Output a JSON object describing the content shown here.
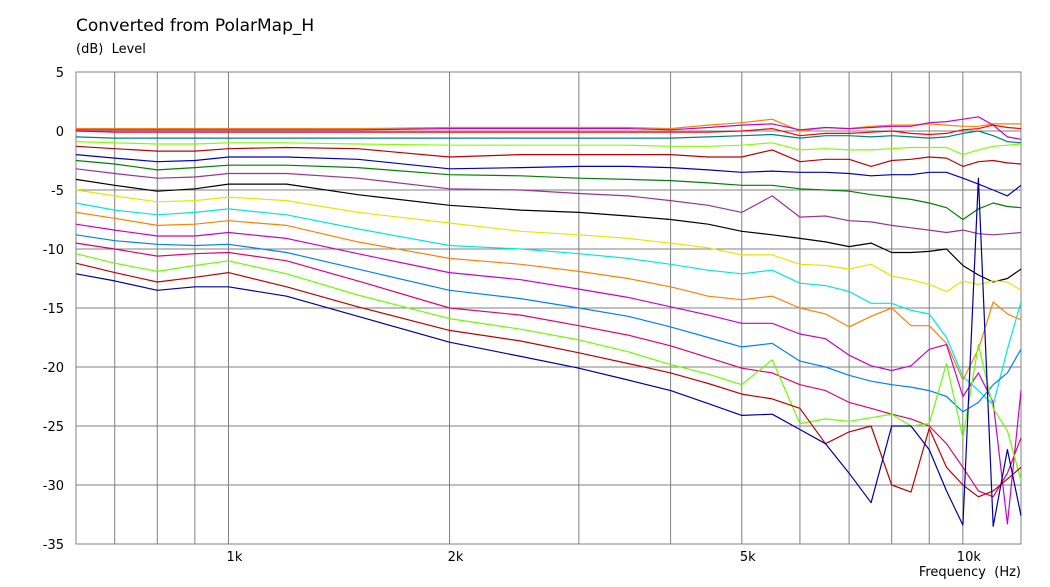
{
  "chart_data": {
    "type": "line",
    "title": "Converted from PolarMap_H",
    "ylabel": "(dB)  Level",
    "xlabel": "Frequency  (Hz)",
    "x_scale": "log",
    "xlim": [
      620,
      12000
    ],
    "ylim": [
      -35,
      5
    ],
    "grid": true,
    "y_ticks": [
      5,
      0,
      -5,
      -10,
      -15,
      -20,
      -25,
      -30,
      -35
    ],
    "x_tick_labels": [
      {
        "value": 1000,
        "label": "1k"
      },
      {
        "value": 2000,
        "label": "2k"
      },
      {
        "value": 5000,
        "label": "5k"
      },
      {
        "value": 10000,
        "label": "10k"
      }
    ],
    "x_grid": [
      700,
      800,
      900,
      1000,
      2000,
      3000,
      4000,
      5000,
      6000,
      7000,
      8000,
      9000,
      10000
    ],
    "x": [
      620,
      700,
      800,
      900,
      1000,
      1200,
      1500,
      2000,
      2500,
      3000,
      3500,
      4000,
      4500,
      5000,
      5500,
      6000,
      6500,
      7000,
      7500,
      8000,
      8500,
      9000,
      9500,
      10000,
      10500,
      11000,
      11500,
      12000
    ],
    "series": [
      {
        "color": "#ff8000",
        "values": [
          0.2,
          0.2,
          0.2,
          0.2,
          0.2,
          0.2,
          0.2,
          0.3,
          0.3,
          0.3,
          0.3,
          0.2,
          0.5,
          0.7,
          1.0,
          0.0,
          0.3,
          0.2,
          0.4,
          0.5,
          0.5,
          0.6,
          0.5,
          0.4,
          0.4,
          0.6,
          0.6,
          0.6
        ]
      },
      {
        "color": "#cc00cc",
        "values": [
          0.1,
          0.1,
          0.1,
          0.1,
          0.1,
          0.1,
          0.1,
          0.2,
          0.2,
          0.2,
          0.2,
          0.1,
          0.3,
          0.5,
          0.6,
          0.1,
          0.3,
          0.2,
          0.3,
          0.4,
          0.4,
          0.7,
          0.8,
          1.0,
          1.2,
          0.5,
          -0.5,
          -0.7
        ]
      },
      {
        "color": "#ff0000",
        "values": [
          0.0,
          -0.1,
          -0.1,
          -0.1,
          -0.1,
          -0.1,
          -0.1,
          -0.1,
          -0.1,
          -0.1,
          -0.1,
          -0.1,
          -0.1,
          0.0,
          0.2,
          -0.4,
          -0.2,
          -0.2,
          -0.1,
          0.0,
          -0.2,
          -0.3,
          -0.2,
          0.1,
          0.2,
          0.5,
          0.3,
          0.2
        ]
      },
      {
        "color": "#008080",
        "values": [
          -0.5,
          -0.6,
          -0.6,
          -0.6,
          -0.6,
          -0.6,
          -0.6,
          -0.6,
          -0.6,
          -0.6,
          -0.6,
          -0.6,
          -0.5,
          -0.4,
          -0.3,
          -0.6,
          -0.4,
          -0.4,
          -0.5,
          -0.4,
          -0.5,
          -0.6,
          -0.5,
          -0.2,
          0.0,
          -0.4,
          -0.9,
          -1.0
        ]
      },
      {
        "color": "#80ff00",
        "values": [
          -0.9,
          -1.0,
          -1.1,
          -1.1,
          -1.0,
          -1.0,
          -1.1,
          -1.2,
          -1.2,
          -1.2,
          -1.2,
          -1.3,
          -1.3,
          -1.2,
          -1.0,
          -1.6,
          -1.5,
          -1.6,
          -1.6,
          -1.5,
          -1.4,
          -1.4,
          -1.4,
          -2.0,
          -1.6,
          -1.3,
          -1.2,
          -1.1
        ]
      },
      {
        "color": "#c00000",
        "values": [
          -1.3,
          -1.5,
          -1.7,
          -1.7,
          -1.5,
          -1.4,
          -1.5,
          -2.2,
          -2.0,
          -2.0,
          -2.0,
          -2.0,
          -2.2,
          -2.2,
          -1.6,
          -2.6,
          -2.4,
          -2.4,
          -3.0,
          -2.5,
          -2.4,
          -2.2,
          -2.3,
          -3.0,
          -2.6,
          -2.5,
          -2.7,
          -2.8
        ]
      },
      {
        "color": "#0000c0",
        "values": [
          -2.0,
          -2.3,
          -2.6,
          -2.5,
          -2.2,
          -2.2,
          -2.4,
          -3.2,
          -3.1,
          -3.0,
          -3.0,
          -3.1,
          -3.3,
          -3.5,
          -3.4,
          -3.5,
          -3.5,
          -3.6,
          -3.8,
          -3.7,
          -3.7,
          -3.5,
          -3.5,
          -4.0,
          -4.5,
          -5.0,
          -5.5,
          -4.6
        ]
      },
      {
        "color": "#008000",
        "values": [
          -2.5,
          -2.8,
          -3.3,
          -3.1,
          -2.9,
          -2.9,
          -3.1,
          -3.7,
          -3.8,
          -4.0,
          -4.1,
          -4.2,
          -4.4,
          -4.6,
          -4.6,
          -4.9,
          -5.0,
          -5.1,
          -5.4,
          -5.6,
          -5.8,
          -6.1,
          -6.5,
          -7.5,
          -6.6,
          -6.1,
          -6.4,
          -6.5
        ]
      },
      {
        "color": "#993399",
        "values": [
          -3.2,
          -3.6,
          -4.0,
          -3.9,
          -3.6,
          -3.6,
          -4.0,
          -4.9,
          -5.0,
          -5.3,
          -5.5,
          -5.9,
          -6.3,
          -6.9,
          -5.5,
          -7.3,
          -7.2,
          -7.6,
          -7.7,
          -8.0,
          -8.2,
          -8.4,
          -8.6,
          -8.4,
          -8.7,
          -8.8,
          -8.7,
          -8.6
        ]
      },
      {
        "color": "#000000",
        "values": [
          -4.1,
          -4.6,
          -5.1,
          -4.9,
          -4.5,
          -4.5,
          -5.4,
          -6.3,
          -6.7,
          -6.9,
          -7.2,
          -7.5,
          -7.9,
          -8.5,
          -8.8,
          -9.1,
          -9.4,
          -9.8,
          -9.5,
          -10.3,
          -10.3,
          -10.2,
          -10.0,
          -11.4,
          -12.2,
          -12.8,
          -12.5,
          -11.7
        ]
      },
      {
        "color": "#e6e600",
        "values": [
          -5.0,
          -5.5,
          -6.0,
          -5.9,
          -5.6,
          -5.9,
          -6.9,
          -7.8,
          -8.5,
          -8.8,
          -9.1,
          -9.5,
          -9.9,
          -10.5,
          -10.5,
          -11.3,
          -11.4,
          -11.7,
          -11.3,
          -12.3,
          -12.6,
          -13.0,
          -13.6,
          -12.7,
          -13.0,
          -12.7,
          -12.8,
          -13.5
        ]
      },
      {
        "color": "#00e6e6",
        "values": [
          -6.1,
          -6.7,
          -7.1,
          -6.9,
          -6.6,
          -7.1,
          -8.3,
          -9.7,
          -10.0,
          -10.4,
          -10.8,
          -11.3,
          -11.8,
          -12.1,
          -11.8,
          -12.9,
          -13.1,
          -13.6,
          -14.6,
          -14.6,
          -15.2,
          -15.5,
          -17.5,
          -20.8,
          -22.0,
          -23.2,
          -18.5,
          -14.5
        ]
      },
      {
        "color": "#ff8000",
        "values": [
          -6.9,
          -7.4,
          -8.0,
          -7.9,
          -7.6,
          -8.0,
          -9.4,
          -10.8,
          -11.3,
          -11.9,
          -12.5,
          -13.2,
          -14.0,
          -14.3,
          -14.0,
          -15.0,
          -15.5,
          -16.6,
          -15.7,
          -15.0,
          -16.5,
          -16.5,
          -18.0,
          -21.1,
          -18.5,
          -14.5,
          -15.5,
          -16.0
        ]
      },
      {
        "color": "#cc00cc",
        "values": [
          -7.9,
          -8.4,
          -8.9,
          -8.9,
          -8.6,
          -9.1,
          -10.4,
          -12.0,
          -12.6,
          -13.4,
          -14.1,
          -14.9,
          -15.6,
          -16.3,
          -16.3,
          -17.2,
          -17.6,
          -19.0,
          -19.9,
          -20.3,
          -19.9,
          -18.5,
          -18.1,
          -22.5,
          -20.5,
          -23.0,
          -33.3,
          -22.0
        ]
      },
      {
        "color": "#0080ff",
        "values": [
          -8.8,
          -9.3,
          -9.6,
          -9.7,
          -9.6,
          -10.3,
          -11.7,
          -13.5,
          -14.2,
          -15.0,
          -15.7,
          -16.6,
          -17.5,
          -18.3,
          -18.0,
          -19.5,
          -20.0,
          -20.7,
          -21.2,
          -21.5,
          -21.7,
          -22.0,
          -22.5,
          -23.8,
          -23.0,
          -21.5,
          -20.5,
          -18.5
        ]
      },
      {
        "color": "#e6006e",
        "values": [
          -9.5,
          -10.0,
          -10.6,
          -10.4,
          -10.3,
          -11.0,
          -12.7,
          -15.0,
          -15.6,
          -16.5,
          -17.3,
          -18.2,
          -19.2,
          -20.1,
          -20.5,
          -21.5,
          -22.0,
          -23.0,
          -23.5,
          -24.0,
          -24.4,
          -25.0,
          -26.5,
          -28.5,
          -30.5,
          -31.0,
          -29.0,
          -26.0
        ]
      },
      {
        "color": "#66ff00",
        "values": [
          -10.4,
          -11.2,
          -11.9,
          -11.4,
          -11.0,
          -12.1,
          -13.9,
          -15.9,
          -16.8,
          -17.7,
          -18.7,
          -19.8,
          -20.6,
          -21.5,
          -19.4,
          -24.8,
          -24.4,
          -24.6,
          -24.3,
          -24.0,
          -25.0,
          -24.8,
          -19.7,
          -26.0,
          -18.1,
          -23.5,
          -25.4,
          -29.6
        ]
      },
      {
        "color": "#c00000",
        "values": [
          -11.2,
          -12.0,
          -12.8,
          -12.4,
          -12.0,
          -13.2,
          -14.9,
          -16.9,
          -17.8,
          -18.8,
          -19.7,
          -20.5,
          -21.4,
          -22.3,
          -22.7,
          -23.5,
          -26.5,
          -25.5,
          -25.0,
          -30.0,
          -30.6,
          -25.2,
          -28.5,
          -30.0,
          -31.0,
          -30.5,
          -29.5,
          -28.5
        ]
      },
      {
        "color": "#0000a0",
        "values": [
          -12.1,
          -12.7,
          -13.5,
          -13.2,
          -13.2,
          -14.0,
          -15.7,
          -17.9,
          -19.1,
          -20.1,
          -21.1,
          -22.0,
          -23.1,
          -24.1,
          -24.0,
          -25.3,
          -26.5,
          -29.0,
          -31.5,
          -25.0,
          -25.0,
          -27.0,
          -30.5,
          -33.4,
          -4.0,
          -33.5,
          -27.0,
          -32.6
        ]
      }
    ]
  }
}
